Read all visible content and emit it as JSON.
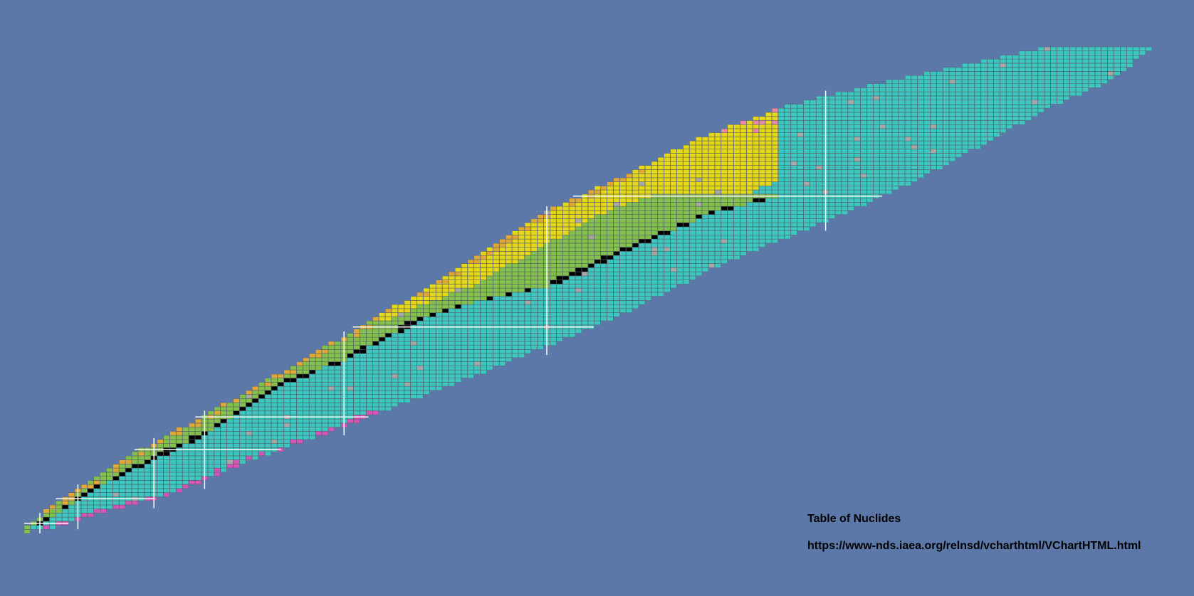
{
  "caption": {
    "title": "Table of Nuclides",
    "url": "https://www-nds.iaea.org/relnsd/vcharthtml/VChartHTML.html"
  },
  "colors": {
    "background": "#5b78a8",
    "stable": "#000000",
    "beta_minus": "#3cc8c0",
    "beta_plus_ec": "#82c24c",
    "alpha": "#e4d818",
    "proton_emission": "#e0a836",
    "neutron_emission": "#d454b8",
    "spontaneous_fission": "#e88aa8",
    "unknown": "#a8a8a8",
    "cell_border": "#555555",
    "magic_lines": "#ffffff"
  },
  "chart_data": {
    "type": "heatmap",
    "xlabel": "",
    "ylabel": "",
    "axes": {
      "x_quantity": "N",
      "y_quantity": "Z"
    },
    "xlim": [
      0,
      177
    ],
    "ylim": [
      0,
      118
    ],
    "magic_numbers": [
      2,
      8,
      20,
      28,
      50,
      82,
      126
    ],
    "categories": [
      "stable",
      "beta_minus",
      "beta_plus_ec",
      "alpha",
      "proton_emission",
      "neutron_emission",
      "spontaneous_fission",
      "unknown"
    ],
    "band": {
      "z_max": 118,
      "stable_line": [
        [
          0,
          1
        ],
        [
          2,
          2
        ],
        [
          6,
          6
        ],
        [
          12,
          12
        ],
        [
          20,
          18
        ],
        [
          28,
          24
        ],
        [
          40,
          36
        ],
        [
          50,
          42
        ],
        [
          62,
          52
        ],
        [
          70,
          56
        ],
        [
          82,
          60
        ],
        [
          96,
          70
        ],
        [
          108,
          78
        ],
        [
          118,
          82
        ],
        [
          126,
          82
        ]
      ],
      "neutron_drip": [
        [
          0,
          0
        ],
        [
          4,
          1
        ],
        [
          10,
          4
        ],
        [
          22,
          9
        ],
        [
          36,
          18
        ],
        [
          50,
          26
        ],
        [
          70,
          38
        ],
        [
          92,
          52
        ],
        [
          110,
          66
        ],
        [
          126,
          76
        ],
        [
          140,
          86
        ],
        [
          152,
          96
        ],
        [
          160,
          103
        ],
        [
          170,
          110
        ],
        [
          177,
          118
        ]
      ],
      "proton_drip": [
        [
          0,
          1
        ],
        [
          2,
          3
        ],
        [
          4,
          6
        ],
        [
          8,
          10
        ],
        [
          16,
          18
        ],
        [
          28,
          28
        ],
        [
          44,
          42
        ],
        [
          64,
          60
        ],
        [
          82,
          78
        ],
        [
          96,
          88
        ],
        [
          106,
          96
        ],
        [
          120,
          104
        ],
        [
          136,
          110
        ],
        [
          160,
          118
        ],
        [
          177,
          118
        ]
      ]
    }
  }
}
